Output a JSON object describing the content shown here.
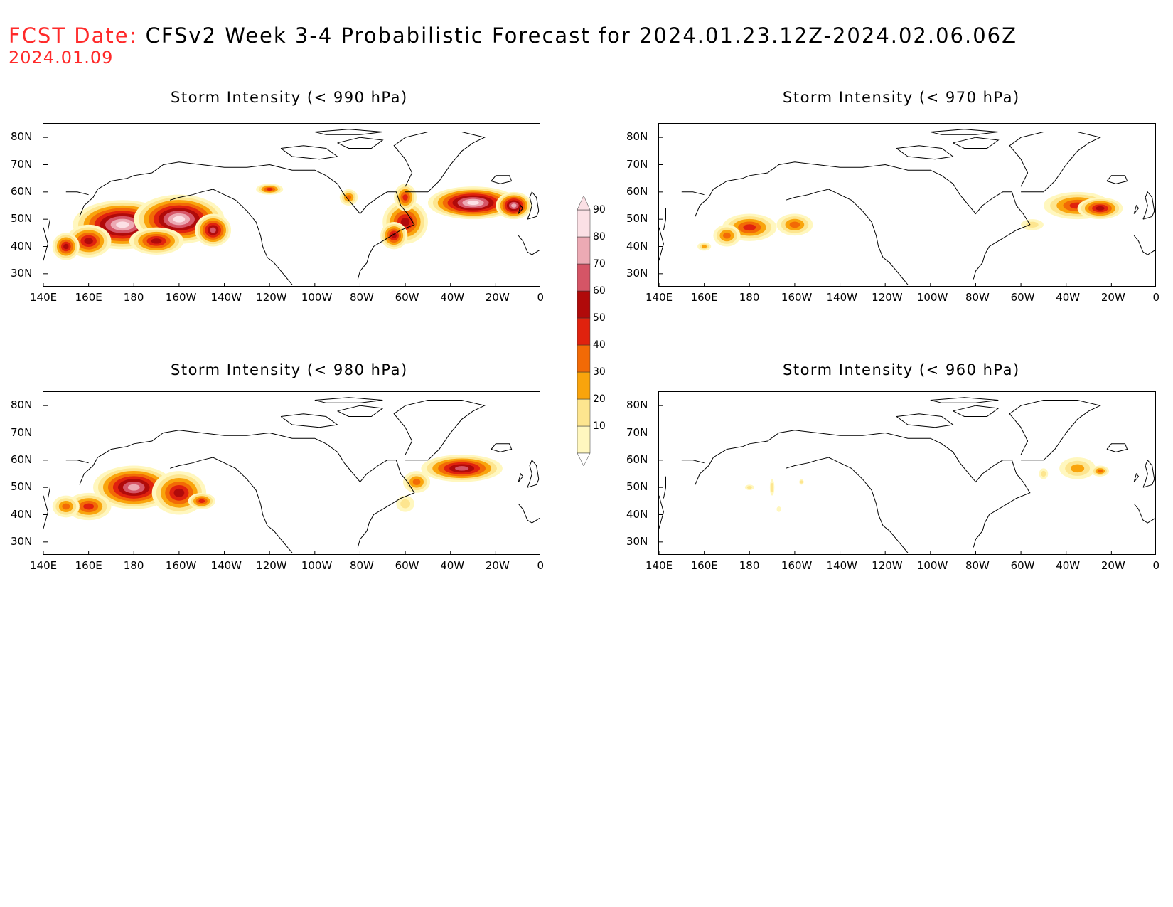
{
  "header": {
    "fcst_label": "FCST Date:",
    "fcst_date": "2024.01.09",
    "title": "CFSv2 Week 3-4 Probabilistic Forecast for 2024.01.23.12Z-2024.02.06.06Z"
  },
  "axes": {
    "lat_ticks": [
      "80N",
      "70N",
      "60N",
      "50N",
      "40N",
      "30N"
    ],
    "lon_ticks": [
      "140E",
      "160E",
      "180",
      "160W",
      "140W",
      "120W",
      "100W",
      "80W",
      "60W",
      "40W",
      "20W",
      "0"
    ]
  },
  "panels": [
    {
      "id": "p990",
      "title": "Storm Intensity (< 990 hPa)",
      "intensity": 1.0
    },
    {
      "id": "p970",
      "title": "Storm Intensity (< 970 hPa)",
      "intensity": 0.42
    },
    {
      "id": "p980",
      "title": "Storm Intensity (< 980 hPa)",
      "intensity": 0.7
    },
    {
      "id": "p960",
      "title": "Storm Intensity (< 960 hPa)",
      "intensity": 0.15
    }
  ],
  "colorbar": {
    "levels": [
      "10",
      "20",
      "30",
      "40",
      "50",
      "60",
      "70",
      "80",
      "90"
    ],
    "colors": [
      "#fff7bf",
      "#fde58f",
      "#f9a40c",
      "#f26a06",
      "#e0220e",
      "#b00a0a",
      "#d55566",
      "#ecaab4",
      "#fbe0e5"
    ]
  }
}
